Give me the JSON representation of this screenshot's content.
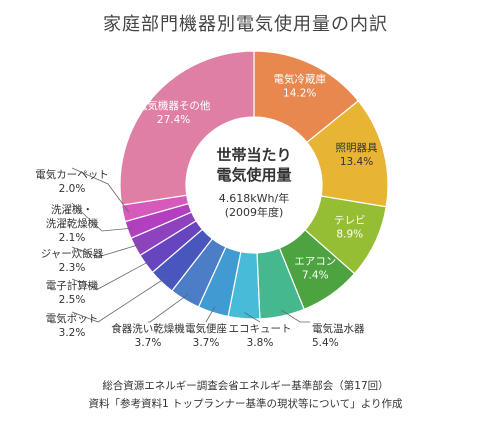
{
  "chart_data": {
    "type": "pie",
    "title": "家庭部門機器別電気使用量の内訳",
    "center": {
      "title_lines": [
        "世帯当たり",
        "電気使用量"
      ],
      "value": "4.618kWh/年",
      "note": "(2009年度)"
    },
    "slices": [
      {
        "label": "電気冷蔵庫",
        "value": 14.2,
        "value_text": "14.2%",
        "color": "#E8874E"
      },
      {
        "label": "照明器具",
        "value": 13.4,
        "value_text": "13.4%",
        "color": "#E8B433"
      },
      {
        "label": "テレビ",
        "value": 8.9,
        "value_text": "8.9%",
        "color": "#96BE35"
      },
      {
        "label": "エアコン",
        "value": 7.4,
        "value_text": "7.4%",
        "color": "#4CA340"
      },
      {
        "label": "電気温水器",
        "value": 5.4,
        "value_text": "5.4%",
        "color": "#45B890"
      },
      {
        "label": "エコキュート",
        "value": 3.8,
        "value_text": "3.8%",
        "color": "#48BBD8"
      },
      {
        "label": "電気便座",
        "value": 3.7,
        "value_text": "3.7%",
        "color": "#3F9BD1"
      },
      {
        "label": "食器洗い乾燥機",
        "value": 3.7,
        "value_text": "3.7%",
        "color": "#4C7DC7"
      },
      {
        "label": "電気ポット",
        "value": 3.2,
        "value_text": "3.2%",
        "color": "#4856BE"
      },
      {
        "label": "電子計算機",
        "value": 2.5,
        "value_text": "2.5%",
        "color": "#6745BE"
      },
      {
        "label": "ジャー炊飯器",
        "value": 2.3,
        "value_text": "2.3%",
        "color": "#8E42BE"
      },
      {
        "label": "洗濯機・\n洗濯乾燥機",
        "value": 2.1,
        "value_text": "2.1%",
        "color": "#B23FBF"
      },
      {
        "label": "電気カーペット",
        "value": 2.0,
        "value_text": "2.0%",
        "color": "#D659BC"
      },
      {
        "label": "電気機器その他",
        "value": 27.4,
        "value_text": "27.4%",
        "color": "#E07FA5"
      }
    ]
  },
  "source_lines": [
    "総合資源エネルギー調査会省エネルギー基準部会（第17回）",
    "資料「参考資料1 トップランナー基準の現状等について」より作成"
  ]
}
